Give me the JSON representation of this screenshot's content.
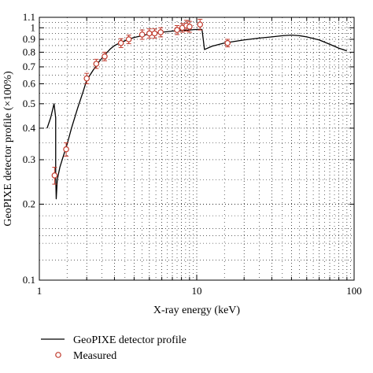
{
  "chart_data": {
    "type": "line",
    "xlabel": "X-ray energy (keV)",
    "ylabel": "GeoPIXE detector profile (×100%)",
    "x_scale": "log",
    "y_scale": "log",
    "xlim": [
      1,
      100
    ],
    "ylim": [
      0.1,
      1.1
    ],
    "x_ticks": [
      {
        "value": 1,
        "label": "1"
      },
      {
        "value": 10,
        "label": "10"
      },
      {
        "value": 100,
        "label": "100"
      }
    ],
    "y_ticks": [
      {
        "value": 0.1,
        "label": "0.1"
      },
      {
        "value": 0.2,
        "label": "0.2"
      },
      {
        "value": 0.3,
        "label": "0.3"
      },
      {
        "value": 0.4,
        "label": "0.4"
      },
      {
        "value": 0.5,
        "label": "0.5"
      },
      {
        "value": 0.6,
        "label": "0.6"
      },
      {
        "value": 0.7,
        "label": "0.7"
      },
      {
        "value": 0.8,
        "label": "0.8"
      },
      {
        "value": 0.9,
        "label": "0.9"
      },
      {
        "value": 1,
        "label": "1"
      },
      {
        "value": 1.1,
        "label": "1.1"
      }
    ],
    "grid": true,
    "legend_position": "bottom-left",
    "series": [
      {
        "name": "GeoPIXE detector profile",
        "style": "line",
        "color": "#000000",
        "x": [
          1.12,
          1.18,
          1.24,
          1.27,
          1.27,
          1.28,
          1.3,
          1.35,
          1.42,
          1.5,
          1.6,
          1.75,
          1.9,
          2.0,
          2.2,
          2.4,
          2.6,
          2.8,
          3.0,
          3.3,
          3.6,
          4.0,
          4.5,
          5.0,
          6.0,
          7.0,
          8.0,
          9.0,
          10.0,
          10.8,
          11.0,
          11.2,
          12.5,
          15,
          20,
          25,
          30,
          35,
          40,
          45,
          50,
          60,
          70,
          80,
          90
        ],
        "y": [
          0.4,
          0.44,
          0.5,
          0.44,
          0.26,
          0.21,
          0.25,
          0.28,
          0.31,
          0.345,
          0.4,
          0.48,
          0.56,
          0.62,
          0.68,
          0.735,
          0.78,
          0.82,
          0.85,
          0.875,
          0.895,
          0.915,
          0.93,
          0.945,
          0.96,
          0.97,
          0.975,
          0.98,
          0.985,
          0.985,
          0.9,
          0.82,
          0.845,
          0.87,
          0.895,
          0.91,
          0.92,
          0.93,
          0.935,
          0.93,
          0.92,
          0.895,
          0.86,
          0.83,
          0.81
        ]
      },
      {
        "name": "Measured",
        "style": "markers",
        "color": "#c0392b",
        "x": [
          1.25,
          1.48,
          2.0,
          2.3,
          2.6,
          3.3,
          3.7,
          4.5,
          5.0,
          5.4,
          5.9,
          7.5,
          8.1,
          8.6,
          9.0,
          10.5,
          15.7
        ],
        "y": [
          0.26,
          0.33,
          0.63,
          0.72,
          0.77,
          0.87,
          0.9,
          0.94,
          0.95,
          0.95,
          0.96,
          0.98,
          1.0,
          1.02,
          1.01,
          1.03,
          0.87
        ],
        "err": [
          0.02,
          0.02,
          0.03,
          0.03,
          0.03,
          0.035,
          0.035,
          0.04,
          0.04,
          0.04,
          0.04,
          0.04,
          0.04,
          0.05,
          0.05,
          0.05,
          0.03
        ]
      }
    ]
  }
}
